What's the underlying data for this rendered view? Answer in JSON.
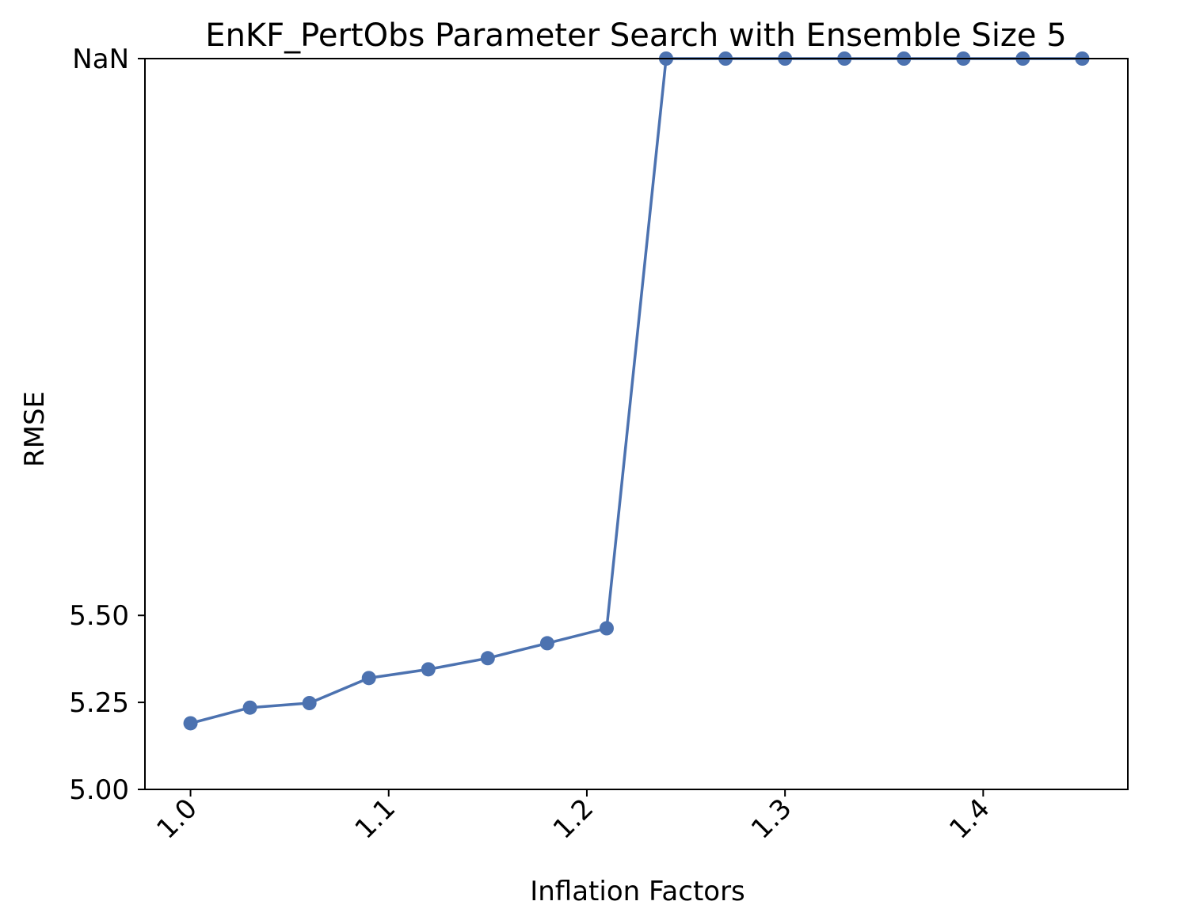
{
  "chart_data": {
    "type": "line",
    "title": "EnKF_PertObs Parameter Search with Ensemble Size 5",
    "xlabel": "Inflation Factors",
    "ylabel": "RMSE",
    "x": [
      1.0,
      1.03,
      1.06,
      1.09,
      1.12,
      1.15,
      1.18,
      1.21,
      1.24,
      1.27,
      1.3,
      1.33,
      1.36,
      1.39,
      1.42,
      1.45
    ],
    "y": [
      5.19,
      5.235,
      5.248,
      5.32,
      5.345,
      5.377,
      5.42,
      5.463,
      "NaN",
      "NaN",
      "NaN",
      "NaN",
      "NaN",
      "NaN",
      "NaN",
      "NaN"
    ],
    "xticks": [
      "1.0",
      "1.1",
      "1.2",
      "1.3",
      "1.4"
    ],
    "yticks": [
      "5.00",
      "5.25",
      "5.50",
      "NaN"
    ],
    "xlim": [
      0.977,
      1.473
    ],
    "ylim": [
      5.0,
      7.1
    ],
    "nan_plotted_at": 7.1,
    "grid": false,
    "color": "#4c72b0"
  }
}
